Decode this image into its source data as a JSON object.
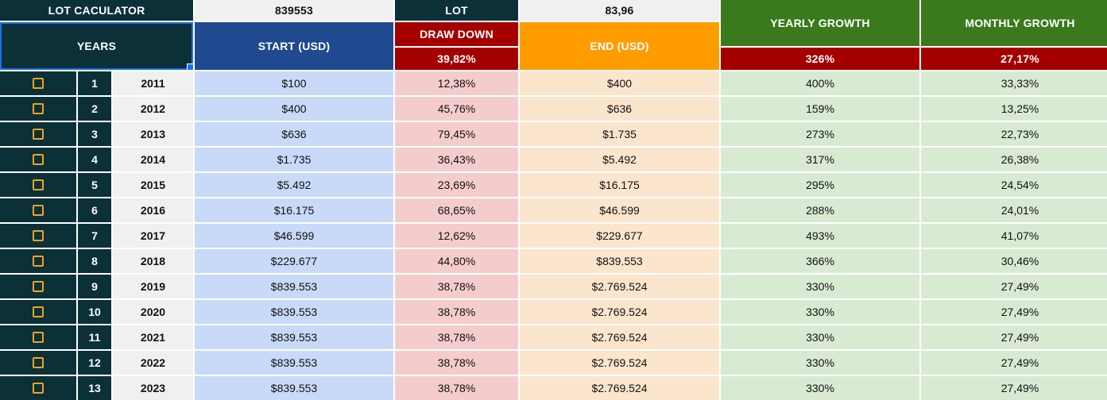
{
  "header": {
    "title": "LOT CACULATOR",
    "target_value": "839553",
    "lot_label": "LOT",
    "lot_value": "83,96",
    "yearly_growth_label": "YEARLY GROWTH",
    "monthly_growth_label": "MONTHLY GROWTH",
    "years_label": "YEARS",
    "start_label": "START (USD)",
    "drawdown_label": "DRAW DOWN",
    "drawdown_total": "39,82%",
    "end_label": "END (USD)",
    "yearly_growth_total": "326%",
    "monthly_growth_total": "27,17%"
  },
  "colors": {
    "dark_teal": "#0b3038",
    "navy": "#1f4a8f",
    "red": "#a50000",
    "orange": "#ff9c00",
    "green": "#3a7a1c",
    "checkbox_border": "#f1a31e"
  },
  "rows": [
    {
      "index": "1",
      "year": "2011",
      "start": "$100",
      "drawdown": "12,38%",
      "end": "$400",
      "yearly": "400%",
      "monthly": "33,33%"
    },
    {
      "index": "2",
      "year": "2012",
      "start": "$400",
      "drawdown": "45,76%",
      "end": "$636",
      "yearly": "159%",
      "monthly": "13,25%"
    },
    {
      "index": "3",
      "year": "2013",
      "start": "$636",
      "drawdown": "79,45%",
      "end": "$1.735",
      "yearly": "273%",
      "monthly": "22,73%"
    },
    {
      "index": "4",
      "year": "2014",
      "start": "$1.735",
      "drawdown": "36,43%",
      "end": "$5.492",
      "yearly": "317%",
      "monthly": "26,38%"
    },
    {
      "index": "5",
      "year": "2015",
      "start": "$5.492",
      "drawdown": "23,69%",
      "end": "$16.175",
      "yearly": "295%",
      "monthly": "24,54%"
    },
    {
      "index": "6",
      "year": "2016",
      "start": "$16.175",
      "drawdown": "68,65%",
      "end": "$46.599",
      "yearly": "288%",
      "monthly": "24,01%"
    },
    {
      "index": "7",
      "year": "2017",
      "start": "$46.599",
      "drawdown": "12,62%",
      "end": "$229.677",
      "yearly": "493%",
      "monthly": "41,07%"
    },
    {
      "index": "8",
      "year": "2018",
      "start": "$229.677",
      "drawdown": "44,80%",
      "end": "$839.553",
      "yearly": "366%",
      "monthly": "30,46%"
    },
    {
      "index": "9",
      "year": "2019",
      "start": "$839.553",
      "drawdown": "38,78%",
      "end": "$2.769.524",
      "yearly": "330%",
      "monthly": "27,49%"
    },
    {
      "index": "10",
      "year": "2020",
      "start": "$839.553",
      "drawdown": "38,78%",
      "end": "$2.769.524",
      "yearly": "330%",
      "monthly": "27,49%"
    },
    {
      "index": "11",
      "year": "2021",
      "start": "$839.553",
      "drawdown": "38,78%",
      "end": "$2.769.524",
      "yearly": "330%",
      "monthly": "27,49%"
    },
    {
      "index": "12",
      "year": "2022",
      "start": "$839.553",
      "drawdown": "38,78%",
      "end": "$2.769.524",
      "yearly": "330%",
      "monthly": "27,49%"
    },
    {
      "index": "13",
      "year": "2023",
      "start": "$839.553",
      "drawdown": "38,78%",
      "end": "$2.769.524",
      "yearly": "330%",
      "monthly": "27,49%"
    }
  ]
}
